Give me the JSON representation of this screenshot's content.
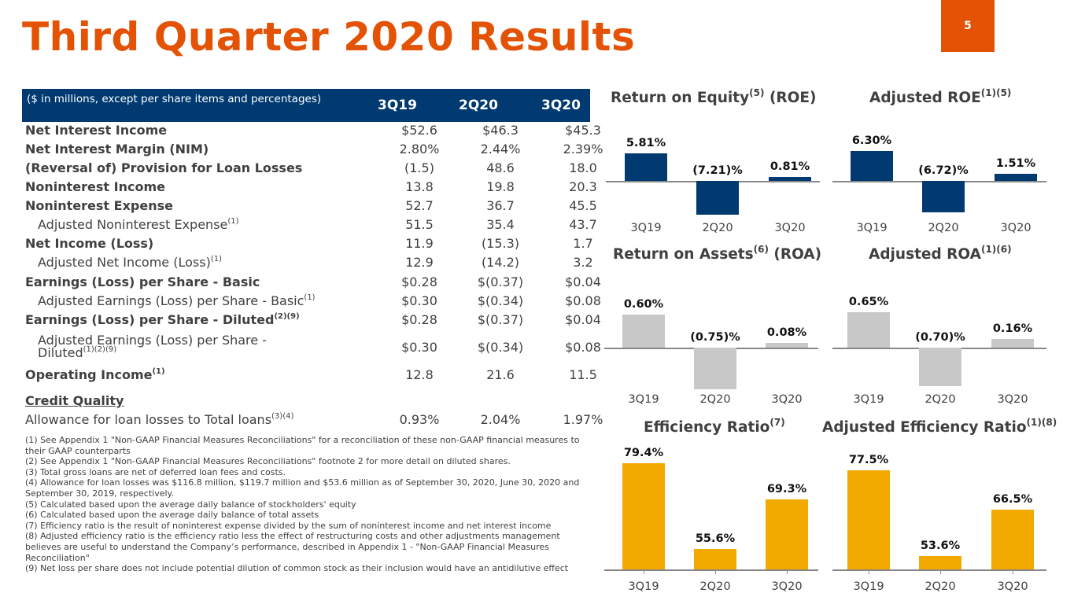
{
  "title": "Third Quarter 2020 Results",
  "page_number": "5",
  "colors": {
    "brand_orange": "#E35205",
    "navy": "#003A70",
    "gray_bar": "#C8C8C8",
    "gold_bar": "#F2A900"
  },
  "table": {
    "caption": "($ in millions, except per share items and percentages)",
    "columns": [
      "3Q19",
      "2Q20",
      "3Q20"
    ],
    "rows": [
      {
        "label": "Net Interest Income",
        "sup": "",
        "bold": true,
        "values": [
          "$52.6",
          "$46.3",
          "$45.3"
        ]
      },
      {
        "label": "Net Interest Margin (NIM)",
        "sup": "",
        "bold": true,
        "values": [
          "2.80%",
          "2.44%",
          "2.39%"
        ]
      },
      {
        "label": "(Reversal of) Provision for Loan Losses",
        "sup": "",
        "bold": true,
        "values": [
          "(1.5)",
          "48.6",
          "18.0"
        ]
      },
      {
        "label": "Noninterest Income",
        "sup": "",
        "bold": true,
        "values": [
          "13.8",
          "19.8",
          "20.3"
        ]
      },
      {
        "label": "Noninterest Expense",
        "sup": "",
        "bold": true,
        "values": [
          "52.7",
          "36.7",
          "45.5"
        ]
      },
      {
        "label": "Adjusted Noninterest Expense",
        "sup": "(1)",
        "indent": true,
        "values": [
          "51.5",
          "35.4",
          "43.7"
        ]
      },
      {
        "label": "Net Income (Loss)",
        "sup": "",
        "bold": true,
        "values": [
          "11.9",
          "(15.3)",
          "1.7"
        ]
      },
      {
        "label": "Adjusted Net Income (Loss)",
        "sup": "(1)",
        "indent": true,
        "values": [
          "12.9",
          "(14.2)",
          "3.2"
        ]
      },
      {
        "label": "Earnings (Loss) per Share - Basic",
        "sup": "",
        "bold": true,
        "values": [
          "$0.28",
          "$(0.37)",
          "$0.04"
        ]
      },
      {
        "label": "Adjusted Earnings (Loss) per Share - Basic",
        "sup": "(1)",
        "indent": true,
        "values": [
          "$0.30",
          "$(0.34)",
          "$0.08"
        ]
      },
      {
        "label": "Earnings (Loss) per Share - Diluted",
        "sup": "(2)(9)",
        "bold": true,
        "values": [
          "$0.28",
          "$(0.37)",
          "$0.04"
        ]
      },
      {
        "label": "Adjusted Earnings (Loss) per Share - Diluted",
        "sup": "(1)(2)(9)",
        "indent": true,
        "two": true,
        "values": [
          "$0.30",
          "$(0.34)",
          "$0.08"
        ]
      },
      {
        "label": "Operating Income",
        "sup": "(1)",
        "bold": true,
        "values": [
          "12.8",
          "21.6",
          "11.5"
        ]
      },
      {
        "label": "Credit Quality",
        "sup": "",
        "bold": true,
        "underline": true,
        "values": [
          "",
          "",
          ""
        ]
      },
      {
        "label": "Allowance for loan losses to Total loans",
        "sup": "(3)(4)",
        "values": [
          "0.93%",
          "2.04%",
          "1.97%"
        ]
      }
    ]
  },
  "footnotes": [
    "(1) See Appendix 1 \"Non-GAAP Financial Measures Reconciliations\" for a reconciliation of these non-GAAP financial measures to their GAAP counterparts",
    "(2)  See Appendix 1 \"Non-GAAP Financial Measures Reconciliations\" footnote 2 for more detail on diluted shares.",
    "(3) Total gross loans are net of deferred loan fees and costs.",
    "(4) Allowance for loan losses was $116.8 million, $119.7 million and $53.6 million as of September 30, 2020, June 30, 2020 and September 30, 2019, respectively.",
    "(5) Calculated based upon the average daily balance of stockholders' equity",
    "(6) Calculated based upon the average daily balance of total assets",
    "(7) Efficiency ratio is the result of noninterest expense divided by the sum of noninterest income and net interest income",
    "(8) Adjusted efficiency ratio is the efficiency ratio less the effect of restructuring costs and other adjustments management believes are useful to understand the Company’s performance, described in Appendix 1 - \"Non-GAAP Financial Measures Reconciliation\"",
    "(9) Net loss per share does not include potential dilution of common stock as their inclusion would have an antidilutive effect"
  ],
  "chart_data": [
    {
      "type": "bar",
      "title": "Return on Equity",
      "title_sup": "(5)",
      "title_suffix": " (ROE)",
      "categories": [
        "3Q19",
        "2Q20",
        "3Q20"
      ],
      "values": [
        5.81,
        -7.21,
        0.81
      ],
      "labels": [
        "5.81%",
        "(7.21)%",
        "0.81%"
      ],
      "ylim": [
        -7.5,
        8.5
      ],
      "color": "#003A70",
      "grid": false
    },
    {
      "type": "bar",
      "title": "Adjusted ROE",
      "title_sup": "(1)(5)",
      "title_suffix": "",
      "categories": [
        "3Q19",
        "2Q20",
        "3Q20"
      ],
      "values": [
        6.3,
        -6.72,
        1.51
      ],
      "labels": [
        "6.30%",
        "(6.72)%",
        "1.51%"
      ],
      "ylim": [
        -7.5,
        8.5
      ],
      "color": "#003A70",
      "grid": false
    },
    {
      "type": "bar",
      "title": "Return on Assets",
      "title_sup": "(6)",
      "title_suffix": " (ROA)",
      "categories": [
        "3Q19",
        "2Q20",
        "3Q20"
      ],
      "values": [
        0.6,
        -0.75,
        0.08
      ],
      "labels": [
        "0.60%",
        "(0.75)%",
        "0.08%"
      ],
      "ylim": [
        -0.8,
        0.9
      ],
      "color": "#C8C8C8",
      "grid": false
    },
    {
      "type": "bar",
      "title": "Adjusted ROA",
      "title_sup": "(1)(6)",
      "title_suffix": "",
      "categories": [
        "3Q19",
        "2Q20",
        "3Q20"
      ],
      "values": [
        0.65,
        -0.7,
        0.16
      ],
      "labels": [
        "0.65%",
        "(0.70)%",
        "0.16%"
      ],
      "ylim": [
        -0.8,
        0.9
      ],
      "color": "#C8C8C8",
      "grid": false
    },
    {
      "type": "bar",
      "title": "Efficiency Ratio",
      "title_sup": "(7)",
      "title_suffix": "",
      "categories": [
        "3Q19",
        "2Q20",
        "3Q20"
      ],
      "values": [
        79.4,
        55.6,
        69.3
      ],
      "labels": [
        "79.4%",
        "55.6%",
        "69.3%"
      ],
      "ylim": [
        50,
        85
      ],
      "color": "#F2A900",
      "grid": false
    },
    {
      "type": "bar",
      "title": "Adjusted Efficiency Ratio",
      "title_sup": "(1)(8)",
      "title_suffix": "",
      "categories": [
        "3Q19",
        "2Q20",
        "3Q20"
      ],
      "values": [
        77.5,
        53.6,
        66.5
      ],
      "labels": [
        "77.5%",
        "53.6%",
        "66.5%"
      ],
      "ylim": [
        50,
        85
      ],
      "color": "#F2A900",
      "grid": false
    }
  ]
}
